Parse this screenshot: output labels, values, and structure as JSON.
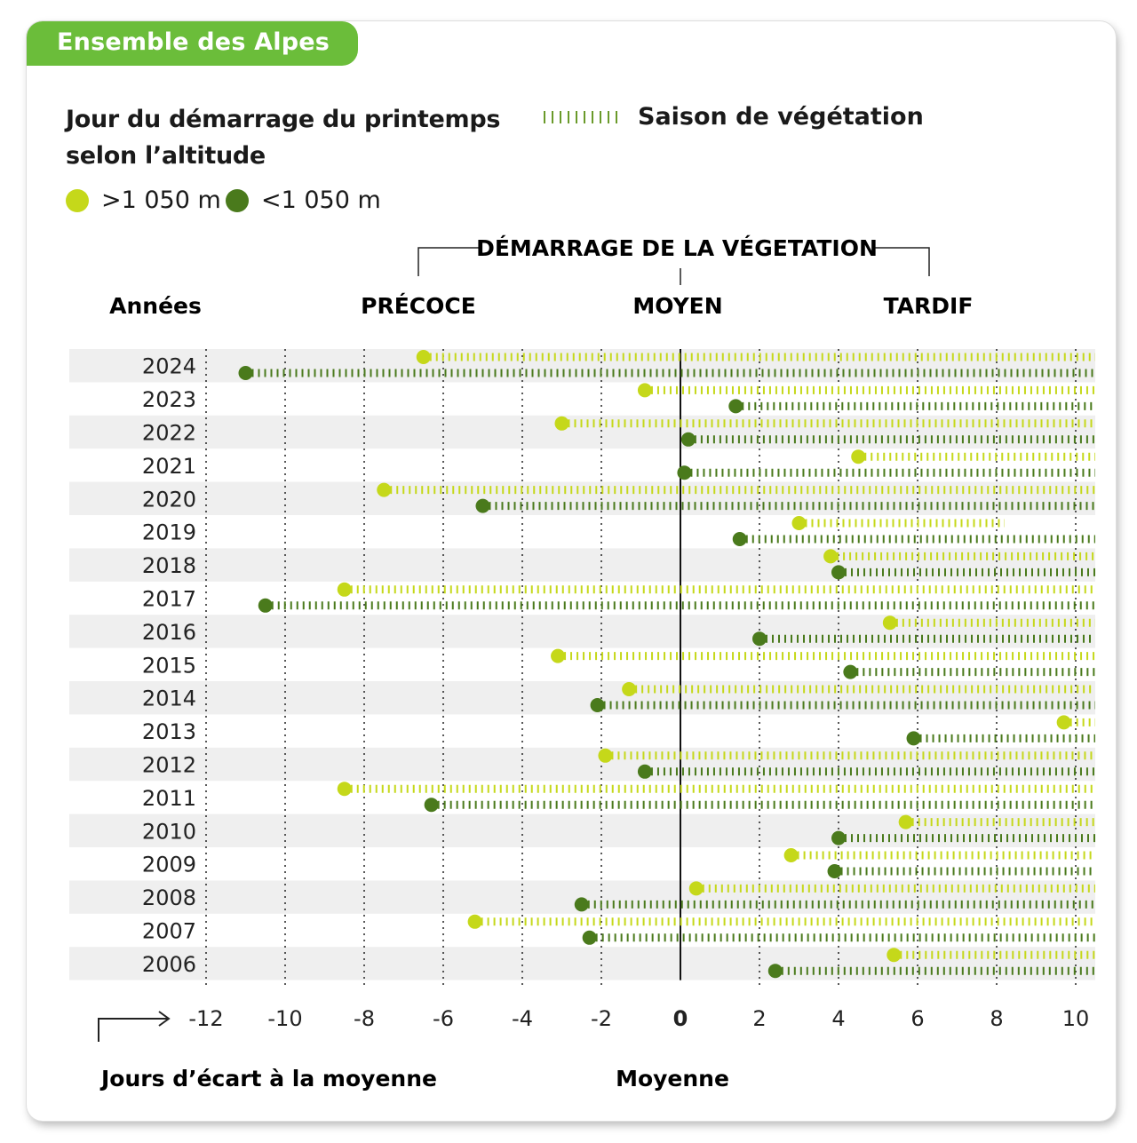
{
  "tab_label": "Ensemble des Alpes",
  "title_line1": "Jour du démarrage du printemps",
  "title_line2": "selon l’altitude",
  "legend": {
    "saison": "Saison de végétation",
    "high": ">1 050 m",
    "low": "<1 050 m"
  },
  "colors": {
    "high": "#c5d81a",
    "low": "#4a7a1c",
    "accent": "#6bbd3a",
    "band": "#efefef"
  },
  "chart_data": {
    "type": "dot-range",
    "header": "DÉMARRAGE DE LA VÉGETATION",
    "categories_label": "Années",
    "zones": [
      "PRÉCOCE",
      "MOYEN",
      "TARDIF"
    ],
    "xlabel": "Jours d’écart à la moyenne",
    "zero_label": "Moyenne",
    "xlim": [
      -12,
      10
    ],
    "xticks": [
      -12,
      -10,
      -8,
      -6,
      -4,
      -2,
      0,
      2,
      4,
      6,
      8,
      10
    ],
    "years": [
      2024,
      2023,
      2022,
      2021,
      2020,
      2019,
      2018,
      2017,
      2016,
      2015,
      2014,
      2013,
      2012,
      2011,
      2010,
      2009,
      2008,
      2007,
      2006
    ],
    "series": [
      {
        "name": ">1 050 m",
        "values": [
          -6.5,
          -0.9,
          -3.0,
          4.5,
          -7.5,
          3.0,
          3.8,
          -8.5,
          5.3,
          -3.1,
          -1.3,
          9.7,
          -1.9,
          -8.5,
          5.7,
          2.8,
          0.4,
          -5.2,
          5.4
        ],
        "end": [
          10.5,
          10.5,
          10.5,
          10.5,
          10.5,
          8.2,
          10.5,
          10.5,
          10.5,
          10.5,
          10.5,
          10.5,
          10.5,
          10.5,
          10.5,
          10.5,
          10.5,
          10.5,
          10.5
        ]
      },
      {
        "name": "<1 050 m",
        "values": [
          -11.0,
          1.4,
          0.2,
          0.1,
          -5.0,
          1.5,
          4.0,
          -10.5,
          2.0,
          4.3,
          -2.1,
          5.9,
          -0.9,
          -6.3,
          4.0,
          3.9,
          -2.5,
          -2.3,
          2.4
        ],
        "end": [
          10.5,
          10.5,
          10.5,
          10.5,
          10.5,
          10.5,
          10.5,
          10.5,
          10.5,
          10.5,
          10.5,
          10.5,
          10.5,
          10.5,
          10.5,
          10.5,
          10.5,
          10.5,
          10.5
        ]
      }
    ]
  }
}
